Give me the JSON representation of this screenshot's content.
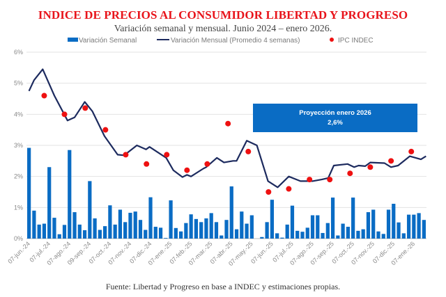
{
  "chart_data": {
    "type": "bar+line+scatter",
    "title": "INDICE DE PRECIOS AL CONSUMIDOR LIBERTAD Y PROGRESO",
    "subtitle": "Variación semanal y mensual. Junio 2024 – enero 2026.",
    "source": "Fuente: Libertad y Progreso en base a INDEC y estimaciones propias.",
    "ylim": [
      0,
      6
    ],
    "yticks": [
      "0%",
      "1%",
      "2%",
      "3%",
      "4%",
      "5%",
      "6%"
    ],
    "grid": true,
    "legend_position": "top",
    "legend": [
      "Variación Semanal",
      "Variación Mensual (Promedio 4 semanas)",
      "IPC INDEC"
    ],
    "xtick_labels": [
      "07-jun.-24",
      "07-jul.-24",
      "07-ago.-24",
      "09-sep.-24",
      "07-oct.-24",
      "07-nov.-24",
      "07-dic.-24",
      "07-ene.-25",
      "07-feb.-25",
      "07-mar.-25",
      "07-abr.-25",
      "07-may.-25",
      "07-jun.-25",
      "07-jul.-25",
      "07-ago.-25",
      "07-sep.-25",
      "07-oct.-25",
      "07-nov.-25",
      "07-dic.-25",
      "07-ene.-26"
    ],
    "weekly": [
      2.92,
      0.9,
      0.45,
      0.48,
      2.3,
      0.67,
      0.14,
      0.44,
      2.85,
      0.85,
      0.45,
      0.27,
      1.85,
      0.65,
      0.28,
      0.4,
      1.07,
      0.45,
      0.93,
      0.53,
      0.83,
      0.87,
      0.6,
      0.28,
      1.33,
      0.38,
      0.35,
      0.02,
      1.23,
      0.34,
      0.23,
      0.5,
      0.78,
      0.63,
      0.53,
      0.65,
      0.82,
      0.53,
      0.1,
      0.6,
      1.68,
      0.3,
      0.87,
      0.48,
      0.75,
      0.0,
      0.05,
      0.53,
      1.25,
      0.17,
      0.03,
      0.45,
      1.06,
      0.25,
      0.22,
      0.35,
      0.75,
      0.75,
      0.18,
      0.5,
      1.32,
      0.1,
      0.48,
      0.38,
      1.32,
      0.25,
      0.3,
      0.85,
      0.93,
      0.23,
      0.15,
      0.93,
      1.12,
      0.52,
      0.17,
      0.77,
      0.77,
      0.82,
      0.6
    ],
    "monthly_avg": [
      [
        0,
        4.75
      ],
      [
        1,
        5.1
      ],
      [
        2.7,
        5.45
      ],
      [
        5,
        4.6
      ],
      [
        7.6,
        3.8
      ],
      [
        9,
        3.9
      ],
      [
        11,
        4.4
      ],
      [
        12.5,
        4.1
      ],
      [
        14.9,
        3.3
      ],
      [
        17.5,
        2.7
      ],
      [
        18.8,
        2.68
      ],
      [
        21.3,
        3.0
      ],
      [
        23.1,
        2.87
      ],
      [
        23.8,
        2.95
      ],
      [
        27.1,
        2.6
      ],
      [
        28.5,
        2.2
      ],
      [
        30.3,
        1.98
      ],
      [
        31.2,
        2.05
      ],
      [
        32,
        2.0
      ],
      [
        34.4,
        2.25
      ],
      [
        35,
        2.3
      ],
      [
        37.1,
        2.6
      ],
      [
        38.5,
        2.45
      ],
      [
        40.3,
        2.5
      ],
      [
        41,
        2.5
      ],
      [
        43,
        3.15
      ],
      [
        45,
        3.0
      ],
      [
        47.2,
        1.85
      ],
      [
        49.1,
        1.65
      ],
      [
        51.3,
        2.0
      ],
      [
        53.6,
        1.85
      ],
      [
        56,
        1.85
      ],
      [
        57.8,
        1.9
      ],
      [
        59.1,
        1.95
      ],
      [
        60.2,
        2.35
      ],
      [
        62.9,
        2.4
      ],
      [
        64.2,
        2.3
      ],
      [
        65.1,
        2.35
      ],
      [
        66.4,
        2.33
      ],
      [
        67.4,
        2.45
      ],
      [
        70.2,
        2.43
      ],
      [
        71.5,
        2.3
      ],
      [
        72.9,
        2.35
      ],
      [
        75.2,
        2.65
      ],
      [
        77.4,
        2.55
      ],
      [
        78.4,
        2.65
      ]
    ],
    "ipc_indec": [
      [
        3,
        4.6
      ],
      [
        7,
        4.0
      ],
      [
        11.1,
        4.2
      ],
      [
        15.1,
        3.5
      ],
      [
        19.1,
        2.7
      ],
      [
        23.2,
        2.4
      ],
      [
        27.2,
        2.7
      ],
      [
        31.2,
        2.2
      ],
      [
        35.2,
        2.4
      ],
      [
        39.3,
        3.7
      ],
      [
        43.3,
        2.8
      ],
      [
        47.3,
        1.5
      ],
      [
        51.3,
        1.6
      ],
      [
        55.4,
        1.9
      ],
      [
        59.4,
        1.9
      ],
      [
        63.4,
        2.1
      ],
      [
        67.4,
        2.3
      ],
      [
        71.5,
        2.5
      ],
      [
        75.5,
        2.8
      ]
    ],
    "annotation": {
      "line1": "Proyección enero 2026",
      "line2": "2,6%"
    },
    "colors": {
      "bars": "#0a6cc4",
      "line": "#1c2a5e",
      "dots": "#ee1111",
      "title": "#e8141b",
      "annotation_bg": "#0a6cc4"
    }
  }
}
